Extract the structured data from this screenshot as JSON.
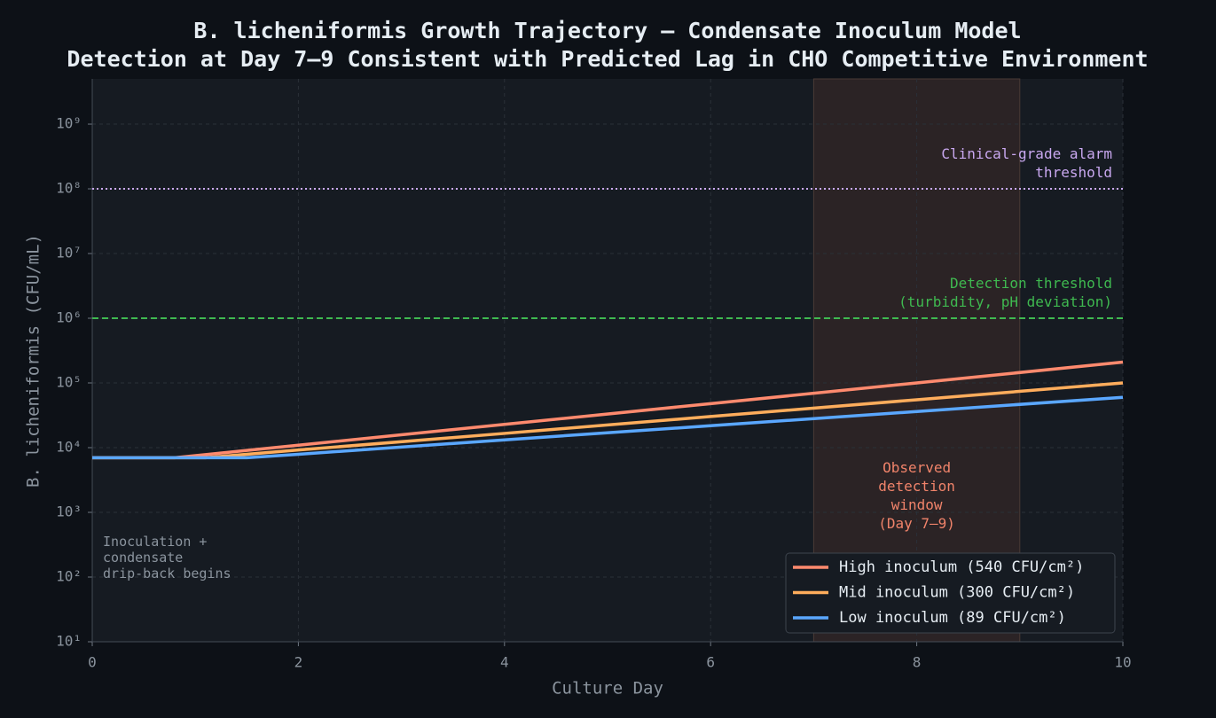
{
  "chart_data": {
    "type": "line",
    "title": "B. licheniformis Growth Trajectory — Condensate Inoculum Model",
    "subtitle": "Detection at Day 7–9 Consistent with Predicted Lag in CHO Competitive Environment",
    "xlabel": "Culture Day",
    "ylabel": "B. licheniformis (CFU/mL)",
    "x": [
      0,
      0.8,
      1.1,
      1.5,
      2,
      4,
      6,
      8,
      10
    ],
    "series": [
      {
        "name": "High inoculum (540 CFU/cm²)",
        "color": "#ff8a6e",
        "values": [
          7000,
          7000,
          7800,
          9060,
          10900,
          22900,
          47900,
          100000,
          210000
        ]
      },
      {
        "name": "Mid inoculum (300 CFU/cm²)",
        "color": "#ffad5c",
        "values": [
          7000,
          7000,
          7000,
          7900,
          9200,
          16600,
          30300,
          55000,
          100000
        ]
      },
      {
        "name": "Low inoculum (89 CFU/cm²)",
        "color": "#5aa7ff",
        "values": [
          7000,
          7000,
          7000,
          7000,
          7900,
          13200,
          21800,
          36200,
          60000
        ]
      }
    ],
    "xlim": [
      0,
      10
    ],
    "xticks": [
      0,
      2,
      4,
      6,
      8,
      10
    ],
    "ylim": [
      10,
      5000000000
    ],
    "log_y": true,
    "grid": true,
    "legend": "lower right",
    "yticks": [
      {
        "value": 10,
        "label": "10¹"
      },
      {
        "value": 100,
        "label": "10²"
      },
      {
        "value": 1000,
        "label": "10³"
      },
      {
        "value": 10000,
        "label": "10⁴"
      },
      {
        "value": 100000,
        "label": "10⁵"
      },
      {
        "value": 1000000,
        "label": "10⁶"
      },
      {
        "value": 10000000,
        "label": "10⁷"
      },
      {
        "value": 100000000,
        "label": "10⁸"
      },
      {
        "value": 1000000000,
        "label": "10⁹"
      }
    ],
    "thresholds": [
      {
        "value": 100000000,
        "label": "Clinical-grade alarm\nthreshold",
        "color": "#c9a8f0",
        "dash": "2 3"
      },
      {
        "value": 1000000,
        "label": "Detection threshold\n(turbidity, pH deviation)",
        "color": "#3fb950",
        "dash": "7 4"
      }
    ],
    "shade": {
      "x": [
        7,
        9
      ],
      "label": "Observed\ndetection\nwindow\n(Day 7–9)",
      "color": "#f0836a"
    },
    "annotation": {
      "x": 0.1,
      "y": 300,
      "text": "Inoculation +\ncondensate\ndrip-back begins"
    }
  }
}
